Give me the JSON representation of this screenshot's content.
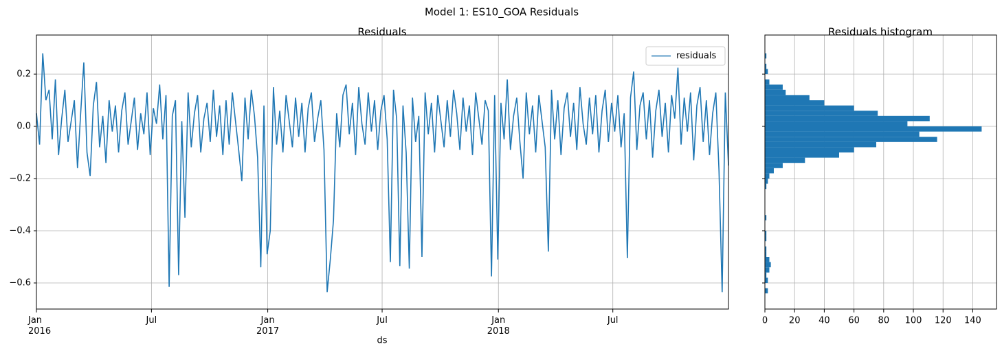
{
  "title": "Model 1: ES10_GOA Residuals",
  "chart_data": [
    {
      "type": "line",
      "title": "Residuals",
      "xlabel": "ds",
      "series": [
        {
          "name": "residuals",
          "color": "#1f77b4",
          "values": [
            0.05,
            -0.07,
            0.28,
            0.1,
            0.14,
            -0.05,
            0.18,
            -0.11,
            0.03,
            0.14,
            -0.06,
            0.02,
            0.1,
            -0.16,
            0.05,
            0.245,
            -0.1,
            -0.19,
            0.08,
            0.17,
            -0.08,
            0.04,
            -0.14,
            0.1,
            -0.02,
            0.08,
            -0.1,
            0.06,
            0.13,
            -0.07,
            0.02,
            0.11,
            -0.09,
            0.05,
            -0.03,
            0.13,
            -0.11,
            0.07,
            0.01,
            0.16,
            -0.05,
            0.12,
            -0.615,
            0.04,
            0.1,
            -0.57,
            0.02,
            -0.35,
            0.13,
            -0.08,
            0.05,
            0.12,
            -0.1,
            0.03,
            0.09,
            -0.06,
            0.14,
            -0.04,
            0.08,
            -0.11,
            0.1,
            -0.07,
            0.13,
            0.02,
            -0.09,
            -0.21,
            0.11,
            -0.05,
            0.14,
            0.04,
            -0.12,
            -0.54,
            0.08,
            -0.49,
            -0.4,
            0.15,
            -0.07,
            0.06,
            -0.1,
            0.12,
            0.02,
            -0.08,
            0.11,
            -0.04,
            0.09,
            -0.1,
            0.07,
            0.13,
            -0.06,
            0.03,
            0.1,
            -0.09,
            -0.635,
            -0.51,
            -0.36,
            0.05,
            -0.08,
            0.12,
            0.16,
            -0.03,
            0.09,
            -0.11,
            0.15,
            0.01,
            -0.07,
            0.13,
            -0.02,
            0.1,
            -0.09,
            0.06,
            0.12,
            -0.05,
            -0.52,
            0.14,
            0.03,
            -0.535,
            0.08,
            -0.1,
            -0.545,
            0.11,
            -0.06,
            0.04,
            -0.5,
            0.13,
            -0.03,
            0.09,
            -0.1,
            0.12,
            0.02,
            -0.08,
            0.1,
            -0.04,
            0.14,
            0.05,
            -0.09,
            0.11,
            -0.02,
            0.08,
            -0.11,
            0.13,
            0.03,
            -0.07,
            0.1,
            0.06,
            -0.575,
            0.12,
            -0.51,
            0.09,
            -0.05,
            0.18,
            -0.09,
            0.04,
            0.11,
            -0.06,
            -0.2,
            0.13,
            -0.03,
            0.08,
            -0.1,
            0.12,
            0.02,
            -0.08,
            -0.48,
            0.14,
            -0.05,
            0.1,
            -0.11,
            0.07,
            0.13,
            -0.04,
            0.09,
            -0.09,
            0.15,
            0.01,
            -0.07,
            0.11,
            -0.03,
            0.12,
            -0.1,
            0.06,
            0.14,
            -0.06,
            0.09,
            -0.02,
            0.12,
            -0.08,
            0.05,
            -0.505,
            0.11,
            0.21,
            -0.09,
            0.08,
            0.13,
            -0.05,
            0.1,
            -0.12,
            0.06,
            0.14,
            -0.04,
            0.09,
            -0.1,
            0.12,
            0.03,
            0.225,
            -0.07,
            0.11,
            -0.02,
            0.13,
            -0.13,
            0.08,
            0.15,
            -0.06,
            0.1,
            -0.11,
            0.05,
            0.13,
            -0.17,
            -0.635,
            0.13,
            -0.15
          ]
        }
      ],
      "xlim": [
        0,
        219
      ],
      "xticks": [
        {
          "value": 0,
          "label": "Jan\n2016"
        },
        {
          "value": 36.4,
          "label": "Jul"
        },
        {
          "value": 73.2,
          "label": "Jan\n2017"
        },
        {
          "value": 109.4,
          "label": "Jul"
        },
        {
          "value": 146.2,
          "label": "Jan\n2018"
        },
        {
          "value": 182.4,
          "label": "Jul"
        }
      ],
      "ylim": [
        -0.7,
        0.35
      ],
      "yticks": [
        {
          "value": -0.6,
          "label": "−0.6"
        },
        {
          "value": -0.4,
          "label": "−0.4"
        },
        {
          "value": -0.2,
          "label": "−0.2"
        },
        {
          "value": 0,
          "label": "0.0"
        },
        0.2
      ],
      "grid": true,
      "legend": "upper right"
    },
    {
      "type": "histogram",
      "title": "Residuals histogram",
      "orientation": "horizontal",
      "color": "#1f77b4",
      "bins": [
        -0.64,
        -0.62,
        -0.6,
        -0.58,
        -0.56,
        -0.54,
        -0.52,
        -0.5,
        -0.48,
        -0.46,
        -0.44,
        -0.42,
        -0.4,
        -0.38,
        -0.36,
        -0.34,
        -0.32,
        -0.3,
        -0.28,
        -0.26,
        -0.24,
        -0.22,
        -0.2,
        -0.18,
        -0.16,
        -0.14,
        -0.12,
        -0.1,
        -0.08,
        -0.06,
        -0.04,
        -0.02,
        0,
        0.02,
        0.04,
        0.06,
        0.08,
        0.1,
        0.12,
        0.14,
        0.16,
        0.18,
        0.2,
        0.22,
        0.24,
        0.26,
        0.28,
        0.3
      ],
      "values": [
        2,
        0,
        2,
        1,
        3,
        4,
        3,
        1,
        1,
        0,
        1,
        1,
        0,
        0,
        1,
        0,
        0,
        0,
        0,
        0,
        1,
        2,
        3,
        6,
        12,
        27,
        50,
        60,
        75,
        116,
        104,
        146,
        96,
        111,
        76,
        60,
        40,
        30,
        14,
        12,
        3,
        0,
        2,
        1,
        0,
        1,
        0
      ],
      "xlim": [
        0,
        156
      ],
      "xticks": [
        0,
        20,
        40,
        60,
        80,
        100,
        120,
        140
      ],
      "sharey": true,
      "grid": true
    }
  ]
}
